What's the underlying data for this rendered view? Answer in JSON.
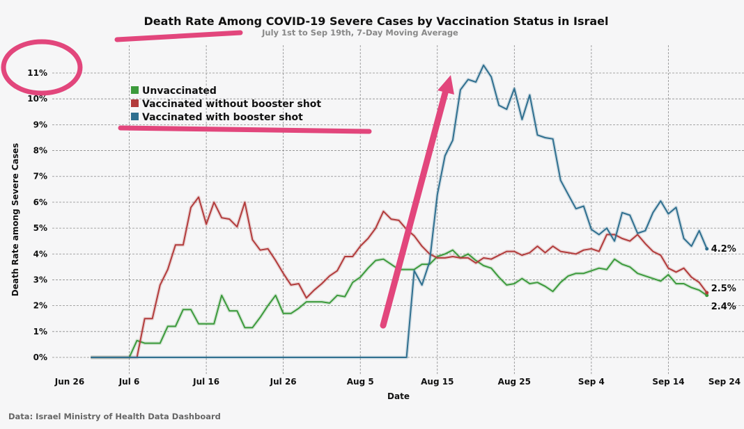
{
  "chart_data": {
    "type": "line",
    "title": "Death Rate Among COVID-19 Severe Cases by Vaccination Status in Israel",
    "subtitle": "July 1st to Sep 19th, 7-Day Moving Average",
    "xlabel": "Date",
    "ylabel": "Death Rate among Severe Cases",
    "source": "Data: Israel Ministry of Health Data Dashboard",
    "x_start": "2021-07-01",
    "x_end": "2021-09-19",
    "xlim": [
      "2021-06-26",
      "2021-09-24"
    ],
    "ylim": [
      0,
      11
    ],
    "x_ticks": [
      "Jun 26",
      "Jul 6",
      "Jul 16",
      "Jul 26",
      "Aug 5",
      "Aug 15",
      "Aug 25",
      "Sep 4",
      "Sep 14",
      "Sep 24"
    ],
    "y_ticks": [
      "0%",
      "1%",
      "2%",
      "3%",
      "4%",
      "5%",
      "6%",
      "7%",
      "8%",
      "9%",
      "10%",
      "11%"
    ],
    "grid": true,
    "legend_position": "top-left",
    "series": [
      {
        "name": "Unvaccinated",
        "color": "#3c9a3c",
        "end_label": "2.4%",
        "values": [
          0,
          0,
          0,
          0,
          0,
          0,
          0.65,
          0.55,
          0.55,
          0.55,
          1.2,
          1.2,
          1.85,
          1.85,
          1.3,
          1.3,
          1.3,
          2.4,
          1.8,
          1.8,
          1.15,
          1.15,
          1.55,
          2.0,
          2.4,
          1.7,
          1.7,
          1.9,
          2.15,
          2.15,
          2.15,
          2.1,
          2.4,
          2.35,
          2.9,
          3.1,
          3.45,
          3.75,
          3.8,
          3.6,
          3.4,
          3.4,
          3.4,
          3.6,
          3.6,
          3.9,
          4.0,
          4.15,
          3.85,
          4.0,
          3.75,
          3.55,
          3.45,
          3.1,
          2.8,
          2.85,
          3.05,
          2.85,
          2.9,
          2.75,
          2.55,
          2.9,
          3.15,
          3.25,
          3.25,
          3.35,
          3.45,
          3.4,
          3.8,
          3.6,
          3.5,
          3.25,
          3.15,
          3.05,
          2.95,
          3.2,
          2.85,
          2.85,
          2.7,
          2.6,
          2.4
        ]
      },
      {
        "name": "Vaccinated without booster shot",
        "color": "#b23b3b",
        "end_label": "2.5%",
        "values": [
          0,
          0,
          0,
          0,
          0,
          0,
          0,
          1.5,
          1.5,
          2.8,
          3.4,
          4.35,
          4.35,
          5.8,
          6.2,
          5.15,
          6.0,
          5.4,
          5.35,
          5.05,
          6.0,
          4.55,
          4.15,
          4.2,
          3.75,
          3.25,
          2.8,
          2.85,
          2.3,
          2.6,
          2.85,
          3.15,
          3.35,
          3.9,
          3.9,
          4.3,
          4.6,
          5.0,
          5.65,
          5.35,
          5.3,
          4.95,
          4.7,
          4.3,
          4.0,
          3.85,
          3.85,
          3.9,
          3.85,
          3.85,
          3.65,
          3.85,
          3.8,
          3.95,
          4.1,
          4.1,
          3.95,
          4.05,
          4.3,
          4.05,
          4.3,
          4.1,
          4.05,
          4.0,
          4.15,
          4.2,
          4.1,
          4.75,
          4.75,
          4.6,
          4.5,
          4.75,
          4.4,
          4.1,
          3.95,
          3.45,
          3.3,
          3.45,
          3.1,
          2.9,
          2.5
        ]
      },
      {
        "name": "Vaccinated with booster shot",
        "color": "#2f6f8f",
        "end_label": "4.2%",
        "values": [
          0,
          0,
          0,
          0,
          0,
          0,
          0,
          0,
          0,
          0,
          0,
          0,
          0,
          0,
          0,
          0,
          0,
          0,
          0,
          0,
          0,
          0,
          0,
          0,
          0,
          0,
          0,
          0,
          0,
          0,
          0,
          0,
          0,
          0,
          0,
          0,
          0,
          0,
          0,
          0,
          0,
          0,
          3.35,
          2.8,
          3.7,
          6.3,
          7.8,
          8.4,
          10.35,
          10.75,
          10.65,
          11.3,
          10.85,
          9.75,
          9.6,
          10.4,
          9.2,
          10.15,
          8.6,
          8.5,
          8.45,
          6.85,
          6.3,
          5.75,
          5.85,
          4.95,
          4.75,
          5.0,
          4.5,
          5.6,
          5.5,
          4.8,
          4.9,
          5.6,
          6.05,
          5.55,
          5.8,
          4.6,
          4.3,
          4.9,
          4.2
        ]
      }
    ]
  },
  "annotation_color": "#e2467c"
}
